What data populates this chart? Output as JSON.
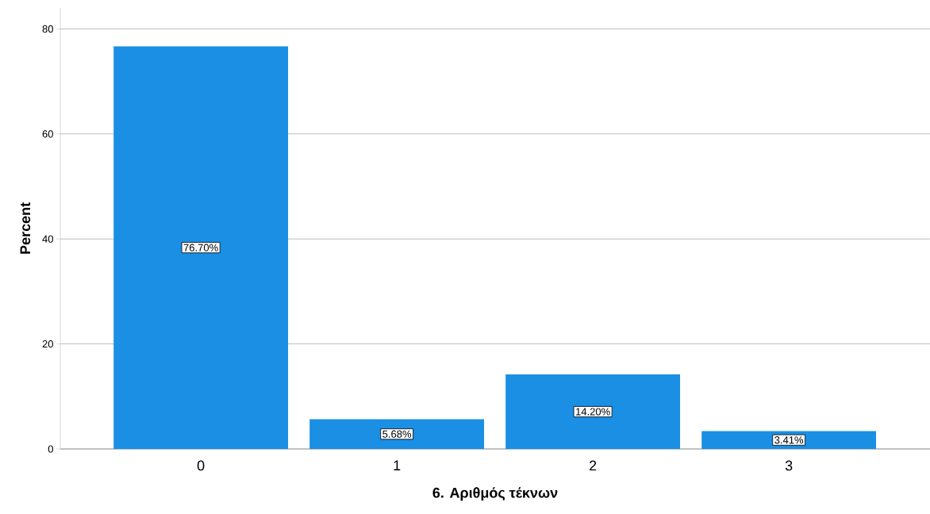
{
  "chart_data": {
    "type": "bar",
    "xlabel": "6. Αριθμός τέκνων",
    "ylabel": "Percent",
    "categories": [
      "0",
      "1",
      "2",
      "3"
    ],
    "values": [
      76.7,
      5.68,
      14.2,
      3.41
    ],
    "value_labels": [
      "76.70%",
      "5.68%",
      "14.20%",
      "3.41%"
    ],
    "color": "#1a8fe3",
    "ylim": [
      0,
      84
    ],
    "yticks": [
      0,
      20,
      40,
      60,
      80
    ],
    "grid": "y"
  }
}
